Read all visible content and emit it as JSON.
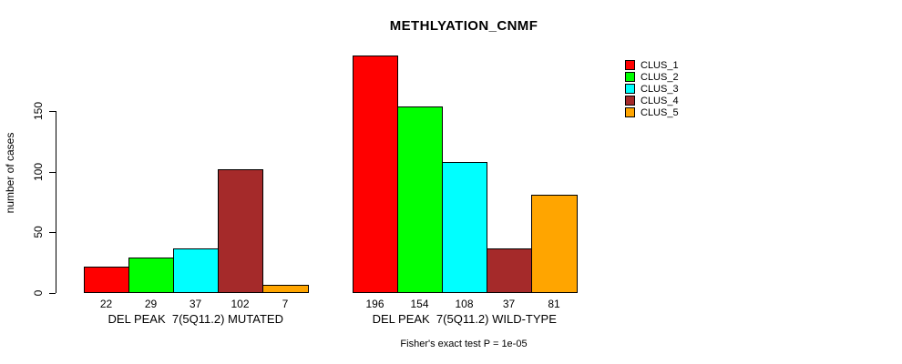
{
  "title": "METHLYATION_CNMF",
  "y_axis": {
    "label": "number of cases",
    "ticks": [
      0,
      50,
      100,
      150
    ]
  },
  "footer": "Fisher's exact test P = 1e-05",
  "legend": {
    "entries": [
      {
        "label": "CLUS_1",
        "color": "#ff0000"
      },
      {
        "label": "CLUS_2",
        "color": "#00ff00"
      },
      {
        "label": "CLUS_3",
        "color": "#00ffff"
      },
      {
        "label": "CLUS_4",
        "color": "#a52a2a"
      },
      {
        "label": "CLUS_5",
        "color": "#ffa500"
      }
    ]
  },
  "chart_data": {
    "type": "bar",
    "title": "METHLYATION_CNMF",
    "ylabel": "number of cases",
    "ylim": [
      0,
      199
    ],
    "yticks": [
      0,
      50,
      100,
      150
    ],
    "grid": false,
    "legend_position": "right-outside",
    "series_names": [
      "CLUS_1",
      "CLUS_2",
      "CLUS_3",
      "CLUS_4",
      "CLUS_5"
    ],
    "series_colors": [
      "#ff0000",
      "#00ff00",
      "#00ffff",
      "#a52a2a",
      "#ffa500"
    ],
    "groups": [
      {
        "label": "DEL PEAK  7(5Q11.2) MUTATED",
        "values": [
          22,
          29,
          37,
          102,
          7
        ]
      },
      {
        "label": "DEL PEAK  7(5Q11.2) WILD-TYPE",
        "values": [
          196,
          154,
          108,
          37,
          81
        ]
      }
    ],
    "annotation": "Fisher's exact test P = 1e-05"
  }
}
